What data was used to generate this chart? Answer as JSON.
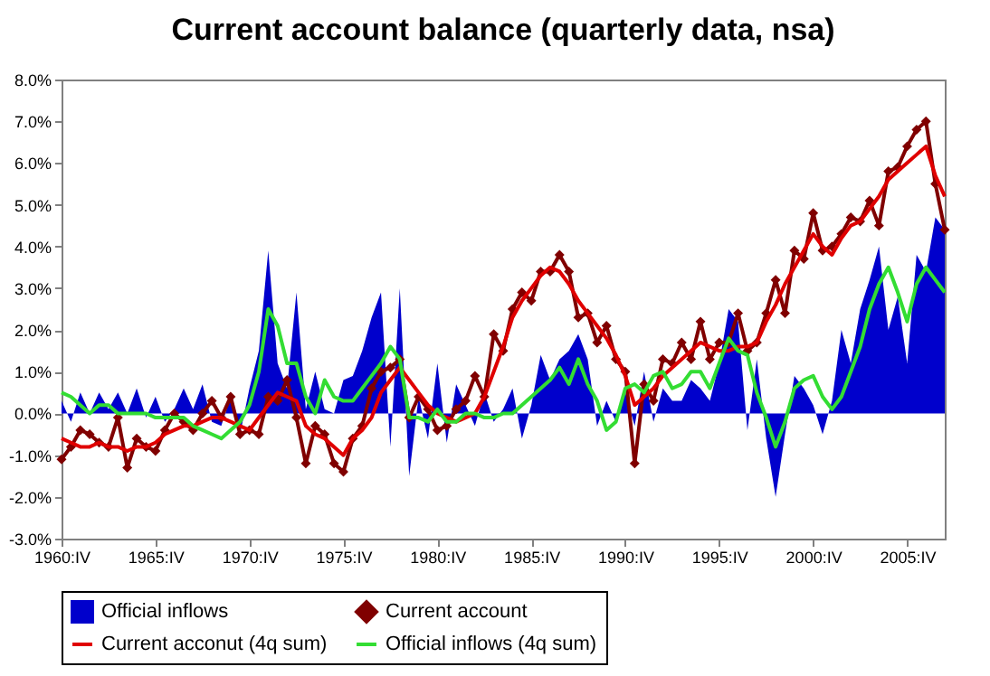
{
  "chart_data": {
    "type": "line",
    "title": "Current account balance (quarterly data, nsa)",
    "categories": [
      "1960:IV",
      null,
      null,
      null,
      null,
      null,
      null,
      null,
      null,
      null,
      "1965:IV",
      null,
      null,
      null,
      null,
      null,
      null,
      null,
      null,
      null,
      "1970:IV",
      null,
      null,
      null,
      null,
      null,
      null,
      null,
      null,
      null,
      "1975:IV",
      null,
      null,
      null,
      null,
      null,
      null,
      null,
      null,
      null,
      "1980:IV",
      null,
      null,
      null,
      null,
      null,
      null,
      null,
      null,
      null,
      "1985:IV",
      null,
      null,
      null,
      null,
      null,
      null,
      null,
      null,
      null,
      "1990:IV",
      null,
      null,
      null,
      null,
      null,
      null,
      null,
      null,
      null,
      "1995:IV",
      null,
      null,
      null,
      null,
      null,
      null,
      null,
      null,
      null,
      "2000:IV",
      null,
      null,
      null,
      null,
      null,
      null,
      null,
      null,
      null,
      "2005:IV",
      null,
      null,
      null,
      null
    ],
    "ylim": [
      -3,
      8
    ],
    "yticks": [
      {
        "value": -3,
        "label": "-3.0%"
      },
      {
        "value": -2,
        "label": "-2.0%"
      },
      {
        "value": -1,
        "label": "-1.0%"
      },
      {
        "value": 0,
        "label": "0.0%"
      },
      {
        "value": 1,
        "label": "1.0%"
      },
      {
        "value": 2,
        "label": "2.0%"
      },
      {
        "value": 3,
        "label": "3.0%"
      },
      {
        "value": 4,
        "label": "4.0%"
      },
      {
        "value": 5,
        "label": "5.0%"
      },
      {
        "value": 6,
        "label": "6.0%"
      },
      {
        "value": 7,
        "label": "7.0%"
      },
      {
        "value": 8,
        "label": "8.0%"
      }
    ],
    "legend": "bottom",
    "series": [
      {
        "name": "Official inflows",
        "type": "area",
        "color": "#0000cc",
        "values": [
          0.3,
          -0.2,
          0.5,
          0.0,
          0.5,
          0.1,
          0.5,
          0.0,
          0.6,
          -0.1,
          0.4,
          -0.2,
          0.1,
          0.6,
          0.1,
          0.7,
          -0.2,
          -0.3,
          0.4,
          -0.5,
          0.6,
          1.5,
          3.9,
          1.2,
          0.6,
          2.9,
          0.1,
          1.0,
          0.1,
          0.0,
          0.8,
          0.9,
          1.5,
          2.3,
          2.9,
          -0.8,
          3.0,
          -1.5,
          0.4,
          -0.6,
          1.2,
          -0.7,
          0.7,
          0.2,
          -0.3,
          0.5,
          -0.2,
          0.1,
          0.6,
          -0.6,
          0.2,
          1.4,
          0.8,
          1.3,
          1.5,
          1.9,
          1.3,
          -0.3,
          0.3,
          -0.2,
          0.5,
          -0.3,
          1.0,
          -0.2,
          0.6,
          0.3,
          0.3,
          0.8,
          0.6,
          0.3,
          1.2,
          2.5,
          2.2,
          -0.4,
          1.3,
          -0.6,
          -2.0,
          -0.5,
          0.9,
          0.6,
          0.2,
          -0.5,
          0.3,
          2.0,
          1.2,
          2.5,
          3.2,
          4.0,
          2.0,
          2.8,
          1.2,
          3.8,
          3.4,
          4.7,
          4.4
        ]
      },
      {
        "name": "Current account",
        "type": "line",
        "marker": "diamond",
        "color": "#800000",
        "values": [
          -1.1,
          -0.8,
          -0.4,
          -0.5,
          -0.7,
          -0.8,
          -0.1,
          -1.3,
          -0.6,
          -0.8,
          -0.9,
          -0.4,
          0.0,
          -0.2,
          -0.4,
          0.0,
          0.3,
          -0.1,
          0.4,
          -0.5,
          -0.4,
          -0.5,
          0.4,
          0.3,
          0.8,
          -0.1,
          -1.2,
          -0.3,
          -0.5,
          -1.2,
          -1.4,
          -0.6,
          -0.3,
          0.6,
          1.0,
          1.1,
          1.3,
          -0.1,
          0.4,
          0.1,
          -0.4,
          -0.3,
          0.1,
          0.3,
          0.9,
          0.4,
          1.9,
          1.5,
          2.5,
          2.9,
          2.7,
          3.4,
          3.4,
          3.8,
          3.4,
          2.3,
          2.4,
          1.7,
          2.1,
          1.3,
          1.0,
          -1.2,
          0.7,
          0.3,
          1.3,
          1.2,
          1.7,
          1.3,
          2.2,
          1.3,
          1.7,
          1.7,
          2.4,
          1.5,
          1.7,
          2.4,
          3.2,
          2.4,
          3.9,
          3.7,
          4.8,
          3.9,
          4.0,
          4.3,
          4.7,
          4.6,
          5.1,
          4.5,
          5.8,
          5.9,
          6.4,
          6.8,
          7.0,
          5.5,
          4.4
        ]
      },
      {
        "name": "Current acconut (4q sum)",
        "type": "line",
        "color": "#e00000",
        "values": [
          -0.6,
          -0.7,
          -0.8,
          -0.8,
          -0.7,
          -0.8,
          -0.8,
          -0.9,
          -0.8,
          -0.8,
          -0.7,
          -0.5,
          -0.4,
          -0.3,
          -0.3,
          -0.2,
          -0.1,
          -0.1,
          -0.2,
          -0.3,
          -0.4,
          -0.1,
          0.2,
          0.5,
          0.4,
          0.3,
          -0.3,
          -0.5,
          -0.6,
          -0.8,
          -1.0,
          -0.6,
          -0.4,
          -0.1,
          0.5,
          0.8,
          1.1,
          0.8,
          0.5,
          0.2,
          0.0,
          -0.1,
          -0.2,
          -0.1,
          0.0,
          0.4,
          1.0,
          1.6,
          2.3,
          2.7,
          3.0,
          3.3,
          3.5,
          3.4,
          3.1,
          2.7,
          2.4,
          2.1,
          1.8,
          1.4,
          0.9,
          0.2,
          0.4,
          0.6,
          0.9,
          1.1,
          1.3,
          1.5,
          1.7,
          1.6,
          1.5,
          1.5,
          1.6,
          1.6,
          1.7,
          2.2,
          2.6,
          3.1,
          3.5,
          3.9,
          4.3,
          4.0,
          3.8,
          4.2,
          4.5,
          4.6,
          4.9,
          5.2,
          5.6,
          5.8,
          6.0,
          6.2,
          6.4,
          5.7,
          5.2
        ]
      },
      {
        "name": "Official inflows (4q sum)",
        "type": "line",
        "color": "#33dd33",
        "values": [
          0.5,
          0.4,
          0.2,
          0.0,
          0.2,
          0.2,
          0.0,
          0.0,
          0.0,
          0.0,
          -0.1,
          -0.1,
          -0.1,
          -0.1,
          -0.3,
          -0.4,
          -0.5,
          -0.6,
          -0.4,
          -0.2,
          0.2,
          1.0,
          2.5,
          2.1,
          1.2,
          1.2,
          0.4,
          0.0,
          0.8,
          0.4,
          0.3,
          0.3,
          0.6,
          0.9,
          1.2,
          1.6,
          1.3,
          -0.1,
          -0.1,
          -0.2,
          0.1,
          -0.2,
          -0.2,
          0.0,
          0.0,
          -0.1,
          -0.1,
          0.0,
          0.0,
          0.2,
          0.4,
          0.6,
          0.8,
          1.1,
          0.7,
          1.3,
          0.7,
          0.3,
          -0.4,
          -0.2,
          0.6,
          0.7,
          0.5,
          0.9,
          1.0,
          0.6,
          0.7,
          1.0,
          1.0,
          0.6,
          1.2,
          1.8,
          1.5,
          1.4,
          0.5,
          -0.1,
          -0.8,
          -0.2,
          0.6,
          0.8,
          0.9,
          0.4,
          0.1,
          0.4,
          1.0,
          1.6,
          2.5,
          3.1,
          3.5,
          2.9,
          2.2,
          3.1,
          3.5,
          3.2,
          2.9
        ]
      }
    ]
  }
}
